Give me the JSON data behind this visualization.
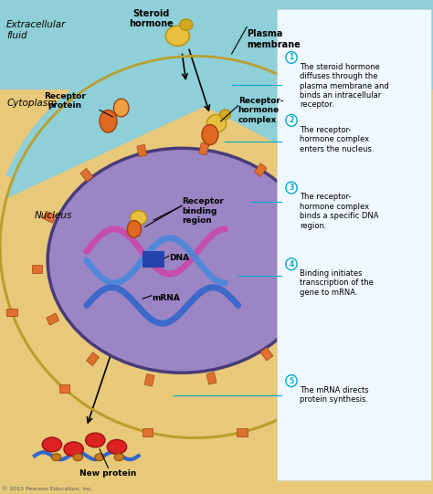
{
  "title": "",
  "bg_top_color": "#8ecfd8",
  "bg_cell_color": "#e8c97a",
  "bg_bottom_color": "#e8c97a",
  "nucleus_color": "#9b85c4",
  "nucleus_border_color": "#5a4a8a",
  "cell_border_color": "#c4a020",
  "plasma_membrane_color": "#8ecfd8",
  "text_label_color": "#00aacc",
  "annotation_color": "#00aacc",
  "label_extracellular": "Extracellular\nfluid",
  "label_cytoplasm": "Cytoplasm",
  "label_nucleus": "Nucleus",
  "label_steroid": "Steroid\nhormone",
  "label_plasma": "Plasma\nmembrane",
  "label_receptor_protein": "Receptor\nprotein",
  "label_receptor_hormone": "Receptor-\nhormone\ncomplex",
  "label_receptor_binding": "Receptor\nbinding\nregion",
  "label_dna": "DNA",
  "label_mrna": "mRNA",
  "label_new_protein": "New protein",
  "step1": "1  The steroid hormone\ndiffuses through the\nplasma membrane and\nbinds an intracellular\nreceptor.",
  "step2": "2  The receptor-\nhormone complex\nenters the nucleus.",
  "step3": "3  The receptor-\nhormone complex\nbinds a specific DNA\nregion.",
  "step4": "4  Binding initiates\ntranscription of the\ngene to mRNA.",
  "step5": "5  The mRNA directs\nprotein synthesis.",
  "copyright": "© 2013 Pearson Education, Inc."
}
